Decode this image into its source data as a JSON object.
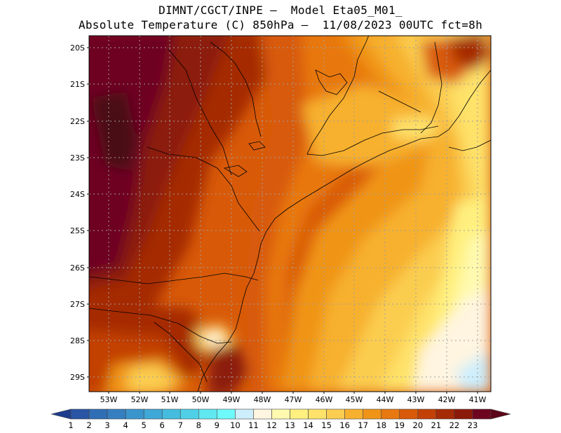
{
  "title_line1": "DIMNT/CGCT/INPE —  Model Eta05_M01_",
  "title_line2": "Absolute Temperature (C) 850hPa —  11/08/2023 00UTC fct=8h",
  "lat_labels": [
    "20S",
    "21S",
    "22S",
    "23S",
    "24S",
    "25S",
    "26S",
    "27S",
    "28S",
    "29S"
  ],
  "lon_labels": [
    "53W",
    "52W",
    "51W",
    "50W",
    "49W",
    "48W",
    "47W",
    "46W",
    "45W",
    "44W",
    "43W",
    "42W",
    "41W"
  ],
  "colorbar": {
    "labels": [
      "1",
      "2",
      "3",
      "4",
      "5",
      "6",
      "7",
      "8",
      "9",
      "10",
      "11",
      "12",
      "13",
      "14",
      "15",
      "16",
      "17",
      "18",
      "19",
      "20",
      "21",
      "22",
      "23"
    ],
    "colors": [
      "#1e3c8c",
      "#2a55a5",
      "#2f6eb5",
      "#357fc0",
      "#3b95cd",
      "#3fa8d6",
      "#45bcdd",
      "#4fd0e6",
      "#5fe8f0",
      "#6ef9fb",
      "#cdeefc",
      "#fff5e0",
      "#fffab0",
      "#fff07f",
      "#fee26a",
      "#fbcd50",
      "#f7b12e",
      "#f09418",
      "#e87810",
      "#d85a08",
      "#c24006",
      "#a52a06",
      "#8c1a08",
      "#6e0520",
      "#5c0418"
    ]
  },
  "grid": "dotted",
  "map_region": "Southeast Brazil"
}
